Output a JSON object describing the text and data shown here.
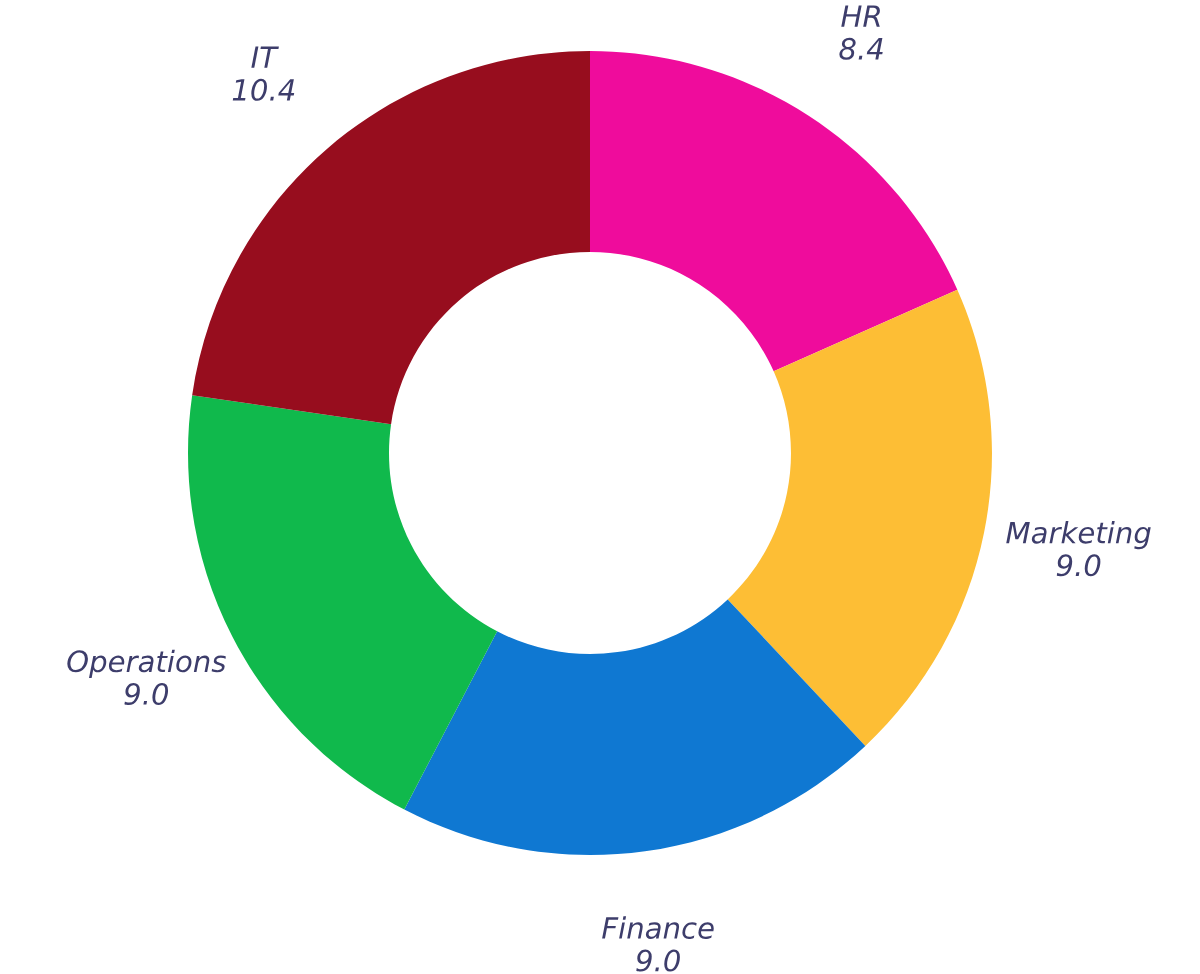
{
  "chart_data": {
    "type": "donut",
    "categories": [
      "HR",
      "Marketing",
      "Finance",
      "Operations",
      "IT"
    ],
    "values": [
      8.4,
      9.0,
      9.0,
      9.0,
      10.4
    ],
    "colors": [
      "#ef0c9c",
      "#fdbe35",
      "#0f78d2",
      "#10b94c",
      "#970d1e"
    ],
    "value_labels": [
      "8.4",
      "9.0",
      "9.0",
      "9.0",
      "10.4"
    ]
  }
}
